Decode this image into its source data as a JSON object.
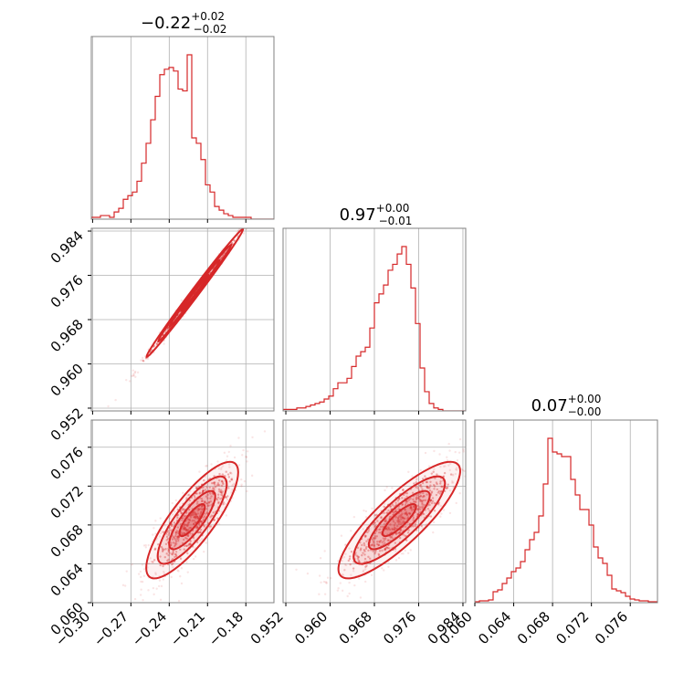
{
  "chart_data": {
    "type": "corner",
    "color": "#d62728",
    "parameters": [
      {
        "title_main": "−0.22",
        "title_sup": "+0.02",
        "title_sub": "−0.02",
        "range": [
          -0.301,
          -0.158
        ],
        "ticks": [
          -0.3,
          -0.27,
          -0.24,
          -0.21,
          -0.18
        ],
        "tick_labels": [
          "−0.30",
          "−0.27",
          "−0.24",
          "−0.21",
          "−0.18"
        ]
      },
      {
        "title_main": "0.97",
        "title_sup": "+0.00",
        "title_sub": "−0.01",
        "range": [
          0.9515,
          0.9845
        ],
        "ticks": [
          0.952,
          0.96,
          0.968,
          0.976,
          0.984
        ],
        "tick_labels": [
          "0.952",
          "0.960",
          "0.968",
          "0.976",
          "0.984"
        ]
      },
      {
        "title_main": "0.07",
        "title_sup": "+0.00",
        "title_sub": "−0.00",
        "range": [
          0.06,
          0.0788
        ],
        "ticks": [
          0.06,
          0.064,
          0.068,
          0.072,
          0.076
        ],
        "tick_labels": [
          "0.060",
          "0.064",
          "0.068",
          "0.072",
          "0.076"
        ]
      }
    ],
    "histograms": [
      {
        "edges_lo": -0.301,
        "bin_width": 0.003575,
        "counts": [
          1,
          1,
          2,
          2,
          1,
          4,
          6,
          11,
          13,
          15,
          21,
          31,
          42,
          55,
          68,
          80,
          83,
          84,
          82,
          72,
          71,
          91,
          45,
          42,
          33,
          19,
          15,
          7,
          5,
          3,
          2,
          1,
          1,
          1,
          1,
          0,
          0,
          0,
          0,
          0
        ]
      },
      {
        "edges_lo": 0.9515,
        "bin_width": 0.000825,
        "counts": [
          1,
          1,
          1,
          2,
          2,
          3,
          4,
          5,
          6,
          8,
          10,
          15,
          19,
          19,
          22,
          30,
          37,
          40,
          43,
          56,
          73,
          79,
          85,
          95,
          99,
          106,
          111,
          99,
          83,
          59,
          29,
          13,
          5,
          2,
          1,
          0,
          0,
          0,
          0,
          0
        ]
      },
      {
        "edges_lo": 0.06,
        "bin_width": 0.00047,
        "counts": [
          1,
          2,
          2,
          3,
          12,
          14,
          21,
          27,
          34,
          38,
          45,
          58,
          69,
          77,
          95,
          130,
          180,
          165,
          163,
          160,
          160,
          135,
          118,
          102,
          102,
          85,
          61,
          49,
          43,
          30,
          15,
          13,
          11,
          7,
          4,
          3,
          2,
          2,
          1,
          1
        ]
      }
    ],
    "pairs": [
      {
        "x_param": 0,
        "y_param": 1,
        "kind": "tight-correlation",
        "center": [
          -0.22,
          0.9728
        ],
        "sd": [
          0.018,
          0.0055
        ],
        "corr": 0.995
      },
      {
        "x_param": 0,
        "y_param": 2,
        "kind": "correlated-cloud",
        "center": [
          -0.222,
          0.0685
        ],
        "sd": [
          0.018,
          0.003
        ],
        "corr": 0.82
      },
      {
        "x_param": 1,
        "y_param": 2,
        "kind": "correlated-cloud",
        "center": [
          0.9725,
          0.0685
        ],
        "sd": [
          0.0055,
          0.003
        ],
        "corr": 0.84
      }
    ]
  }
}
